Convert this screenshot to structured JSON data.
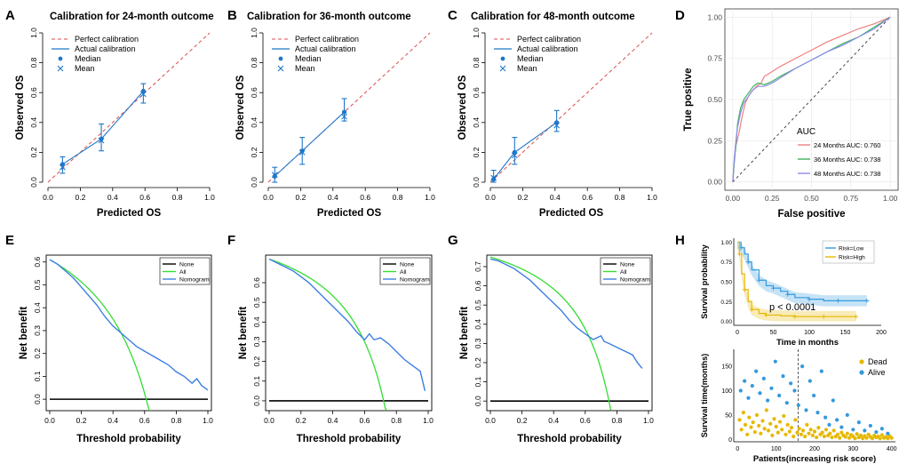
{
  "chart_data": [
    {
      "panel": "A",
      "type": "scatter",
      "title": "Calibration for 24-month outcome",
      "xlabel": "Predicted OS",
      "ylabel": "Observed OS",
      "xlim": [
        0,
        1
      ],
      "ylim": [
        0,
        1
      ],
      "ticks": [
        "0.0",
        "0.2",
        "0.4",
        "0.6",
        "0.8",
        "1.0"
      ],
      "legend": [
        "Perfect calibration",
        "Actual calibration",
        "Median",
        "Mean"
      ],
      "points": [
        {
          "x": 0.09,
          "median": 0.12,
          "mean": 0.1,
          "lo": 0.06,
          "hi": 0.17
        },
        {
          "x": 0.33,
          "median": 0.29,
          "mean": 0.28,
          "lo": 0.21,
          "hi": 0.39
        },
        {
          "x": 0.59,
          "median": 0.61,
          "mean": 0.59,
          "lo": 0.53,
          "hi": 0.66
        }
      ]
    },
    {
      "panel": "B",
      "type": "scatter",
      "title": "Calibration for 36-month outcome",
      "xlabel": "Predicted OS",
      "ylabel": "Observed OS",
      "xlim": [
        0,
        1
      ],
      "ylim": [
        0,
        1
      ],
      "ticks": [
        "0.0",
        "0.2",
        "0.4",
        "0.6",
        "0.8",
        "1.0"
      ],
      "legend": [
        "Perfect calibration",
        "Actual calibration",
        "Median",
        "Mean"
      ],
      "points": [
        {
          "x": 0.04,
          "median": 0.04,
          "mean": 0.05,
          "lo": 0.0,
          "hi": 0.1
        },
        {
          "x": 0.21,
          "median": 0.21,
          "mean": 0.2,
          "lo": 0.12,
          "hi": 0.3
        },
        {
          "x": 0.47,
          "median": 0.47,
          "mean": 0.44,
          "lo": 0.41,
          "hi": 0.56
        }
      ]
    },
    {
      "panel": "C",
      "type": "scatter",
      "title": "Calibration for 48-month outcome",
      "xlabel": "Predicted OS",
      "ylabel": "Observed OS",
      "xlim": [
        0,
        1
      ],
      "ylim": [
        0,
        1
      ],
      "ticks": [
        "0.0",
        "0.2",
        "0.4",
        "0.6",
        "0.8",
        "1.0"
      ],
      "legend": [
        "Perfect calibration",
        "Actual calibration",
        "Median",
        "Mean"
      ],
      "points": [
        {
          "x": 0.02,
          "median": 0.02,
          "mean": 0.03,
          "lo": 0.0,
          "hi": 0.08
        },
        {
          "x": 0.15,
          "median": 0.2,
          "mean": 0.18,
          "lo": 0.12,
          "hi": 0.3
        },
        {
          "x": 0.41,
          "median": 0.4,
          "mean": 0.38,
          "lo": 0.34,
          "hi": 0.48
        }
      ]
    },
    {
      "panel": "D",
      "type": "line",
      "xlabel": "False positive",
      "ylabel": "True positive",
      "xlim": [
        0,
        1
      ],
      "ylim": [
        0,
        1
      ],
      "ticks": [
        "0.00",
        "0.25",
        "0.50",
        "0.75",
        "1.00"
      ],
      "legend_title": "AUC",
      "series": [
        {
          "name": "24 Months AUC: 0.760",
          "color": "#f08080",
          "x": [
            0,
            0.01,
            0.02,
            0.04,
            0.06,
            0.08,
            0.1,
            0.12,
            0.15,
            0.18,
            0.2,
            0.25,
            0.3,
            0.4,
            0.5,
            0.6,
            0.7,
            0.8,
            0.9,
            1.0
          ],
          "y": [
            0,
            0.15,
            0.22,
            0.3,
            0.4,
            0.48,
            0.52,
            0.55,
            0.58,
            0.6,
            0.64,
            0.67,
            0.7,
            0.75,
            0.8,
            0.85,
            0.89,
            0.93,
            0.96,
            1.0
          ]
        },
        {
          "name": "36 Months AUC: 0.738",
          "color": "#3cb45a",
          "x": [
            0,
            0.01,
            0.02,
            0.03,
            0.05,
            0.07,
            0.1,
            0.13,
            0.16,
            0.2,
            0.25,
            0.3,
            0.4,
            0.5,
            0.6,
            0.7,
            0.8,
            0.9,
            1.0
          ],
          "y": [
            0,
            0.12,
            0.22,
            0.35,
            0.45,
            0.5,
            0.54,
            0.58,
            0.6,
            0.59,
            0.61,
            0.64,
            0.69,
            0.74,
            0.79,
            0.84,
            0.88,
            0.94,
            1.0
          ]
        },
        {
          "name": "48 Months AUC: 0.738",
          "color": "#8c8cf0",
          "x": [
            0,
            0.01,
            0.02,
            0.03,
            0.05,
            0.07,
            0.1,
            0.13,
            0.16,
            0.2,
            0.25,
            0.3,
            0.4,
            0.5,
            0.6,
            0.7,
            0.8,
            0.9,
            1.0
          ],
          "y": [
            0,
            0.14,
            0.25,
            0.33,
            0.42,
            0.48,
            0.52,
            0.56,
            0.58,
            0.58,
            0.6,
            0.63,
            0.69,
            0.74,
            0.79,
            0.83,
            0.88,
            0.93,
            1.0
          ]
        }
      ]
    },
    {
      "panel": "E",
      "type": "line",
      "xlabel": "Threshold probability",
      "ylabel": "Net benefit",
      "xlim": [
        0,
        1
      ],
      "ylim": [
        -0.05,
        0.63
      ],
      "xticks": [
        "0.0",
        "0.2",
        "0.4",
        "0.6",
        "0.8",
        "1.0"
      ],
      "yticks": [
        "0.0",
        "0.1",
        "0.2",
        "0.3",
        "0.4",
        "0.5",
        "0.6"
      ],
      "legend": [
        "None",
        "All",
        "Nomogram"
      ],
      "prevalence": 0.61,
      "nomogram": {
        "x": [
          0.0,
          0.05,
          0.1,
          0.15,
          0.2,
          0.25,
          0.3,
          0.35,
          0.4,
          0.45,
          0.5,
          0.55,
          0.6,
          0.65,
          0.7,
          0.75,
          0.8,
          0.85,
          0.9,
          0.93,
          0.96,
          1.0
        ],
        "y": [
          0.61,
          0.59,
          0.56,
          0.53,
          0.49,
          0.45,
          0.41,
          0.36,
          0.32,
          0.29,
          0.26,
          0.23,
          0.21,
          0.19,
          0.17,
          0.15,
          0.12,
          0.1,
          0.07,
          0.09,
          0.06,
          0.04
        ]
      }
    },
    {
      "panel": "F",
      "type": "line",
      "xlabel": "Threshold probability",
      "ylabel": "Net benefit",
      "xlim": [
        0,
        1
      ],
      "ylim": [
        -0.05,
        0.74
      ],
      "xticks": [
        "0.0",
        "0.2",
        "0.4",
        "0.6",
        "0.8",
        "1.0"
      ],
      "yticks": [
        "0.0",
        "0.1",
        "0.2",
        "0.3",
        "0.4",
        "0.5",
        "0.6"
      ],
      "legend": [
        "None",
        "All",
        "Nomogram"
      ],
      "prevalence": 0.72,
      "nomogram": {
        "x": [
          0.0,
          0.05,
          0.1,
          0.15,
          0.2,
          0.25,
          0.3,
          0.35,
          0.4,
          0.45,
          0.5,
          0.55,
          0.6,
          0.63,
          0.66,
          0.7,
          0.75,
          0.8,
          0.85,
          0.9,
          0.95,
          0.98
        ],
        "y": [
          0.72,
          0.7,
          0.68,
          0.66,
          0.63,
          0.6,
          0.56,
          0.52,
          0.48,
          0.44,
          0.4,
          0.35,
          0.31,
          0.34,
          0.31,
          0.32,
          0.29,
          0.25,
          0.21,
          0.18,
          0.15,
          0.05
        ]
      }
    },
    {
      "panel": "G",
      "type": "line",
      "xlabel": "Threshold probability",
      "ylabel": "Net benefit",
      "xlim": [
        0,
        1
      ],
      "ylim": [
        -0.05,
        0.76
      ],
      "xticks": [
        "0.0",
        "0.2",
        "0.4",
        "0.6",
        "0.8",
        "1.0"
      ],
      "yticks": [
        "0.0",
        "0.1",
        "0.2",
        "0.3",
        "0.4",
        "0.5",
        "0.6",
        "0.7"
      ],
      "legend": [
        "None",
        "All",
        "Nomogram"
      ],
      "prevalence": 0.75,
      "nomogram": {
        "x": [
          0.0,
          0.05,
          0.1,
          0.15,
          0.2,
          0.25,
          0.3,
          0.35,
          0.4,
          0.45,
          0.5,
          0.55,
          0.6,
          0.65,
          0.7,
          0.72,
          0.75,
          0.8,
          0.85,
          0.9,
          0.93,
          0.96
        ],
        "y": [
          0.74,
          0.73,
          0.71,
          0.69,
          0.66,
          0.63,
          0.59,
          0.55,
          0.51,
          0.47,
          0.42,
          0.38,
          0.35,
          0.32,
          0.34,
          0.31,
          0.3,
          0.28,
          0.26,
          0.24,
          0.2,
          0.17
        ]
      }
    },
    {
      "panel": "H-top",
      "type": "line",
      "xlabel": "Time in months",
      "ylabel": "Survival probability",
      "xlim": [
        0,
        200
      ],
      "ylim": [
        0,
        1
      ],
      "xticks": [
        "0",
        "50",
        "100",
        "150",
        "200"
      ],
      "yticks": [
        "0.00",
        "0.25",
        "0.50",
        "0.75",
        "1.00"
      ],
      "legend": [
        "Risk=Low",
        "Risk=High"
      ],
      "annotation": "p < 0.0001",
      "series": [
        {
          "name": "Risk=Low",
          "color": "#3399dd",
          "x": [
            0,
            5,
            10,
            15,
            20,
            30,
            40,
            50,
            60,
            70,
            80,
            100,
            120,
            140,
            160,
            180
          ],
          "y": [
            1.0,
            0.93,
            0.85,
            0.75,
            0.65,
            0.52,
            0.45,
            0.42,
            0.38,
            0.34,
            0.3,
            0.28,
            0.26,
            0.26,
            0.26,
            0.26
          ]
        },
        {
          "name": "Risk=High",
          "color": "#e6b800",
          "x": [
            0,
            3,
            6,
            10,
            15,
            20,
            30,
            40,
            60,
            80,
            100,
            120,
            140,
            165
          ],
          "y": [
            1.0,
            0.85,
            0.6,
            0.4,
            0.25,
            0.15,
            0.1,
            0.08,
            0.07,
            0.06,
            0.06,
            0.06,
            0.06,
            0.06
          ]
        }
      ]
    },
    {
      "panel": "H-bottom",
      "type": "scatter",
      "xlabel": "Patients(increasing risk score)",
      "ylabel": "Survival time(months)",
      "xlim": [
        0,
        410
      ],
      "ylim": [
        0,
        185
      ],
      "xticks": [
        "0",
        "100",
        "200",
        "300",
        "400"
      ],
      "yticks": [
        "0",
        "50",
        "100",
        "150"
      ],
      "legend": [
        "Dead",
        "Alive"
      ],
      "cutoff": 157,
      "series": [
        {
          "name": "Dead",
          "color": "#e6b800",
          "x": [
            5,
            10,
            15,
            20,
            25,
            30,
            35,
            40,
            45,
            50,
            55,
            60,
            65,
            70,
            75,
            80,
            85,
            90,
            95,
            100,
            105,
            110,
            115,
            120,
            125,
            130,
            135,
            140,
            145,
            150,
            155,
            160,
            165,
            170,
            175,
            180,
            185,
            190,
            195,
            200,
            205,
            210,
            215,
            220,
            225,
            230,
            235,
            240,
            245,
            250,
            255,
            260,
            265,
            270,
            275,
            280,
            285,
            290,
            295,
            300,
            305,
            310,
            315,
            320,
            325,
            330,
            335,
            340,
            345,
            350,
            355,
            360,
            365,
            370,
            375,
            380,
            385,
            390,
            395,
            400
          ],
          "y": [
            40,
            20,
            55,
            30,
            10,
            45,
            25,
            35,
            15,
            50,
            28,
            12,
            38,
            22,
            60,
            18,
            32,
            8,
            42,
            26,
            14,
            36,
            20,
            48,
            10,
            30,
            16,
            24,
            6,
            40,
            14,
            22,
            10,
            18,
            6,
            30,
            12,
            20,
            8,
            16,
            4,
            24,
            10,
            14,
            6,
            20,
            8,
            12,
            4,
            18,
            6,
            10,
            3,
            14,
            8,
            5,
            12,
            3,
            9,
            6,
            2,
            11,
            4,
            8,
            2,
            7,
            3,
            10,
            5,
            2,
            8,
            4,
            6,
            2,
            9,
            3,
            5,
            2,
            7,
            3
          ]
        },
        {
          "name": "Alive",
          "color": "#3399dd",
          "x": [
            8,
            18,
            28,
            38,
            48,
            58,
            68,
            78,
            88,
            98,
            108,
            118,
            128,
            138,
            148,
            158,
            168,
            178,
            188,
            198,
            208,
            218,
            228,
            238,
            248,
            258,
            270,
            285,
            300,
            315,
            330,
            345,
            360,
            375,
            390
          ],
          "y": [
            100,
            120,
            85,
            110,
            140,
            95,
            125,
            80,
            105,
            160,
            90,
            130,
            75,
            115,
            100,
            70,
            150,
            60,
            120,
            90,
            55,
            140,
            45,
            30,
            80,
            40,
            25,
            50,
            20,
            35,
            18,
            28,
            15,
            22,
            12
          ]
        }
      ]
    }
  ]
}
